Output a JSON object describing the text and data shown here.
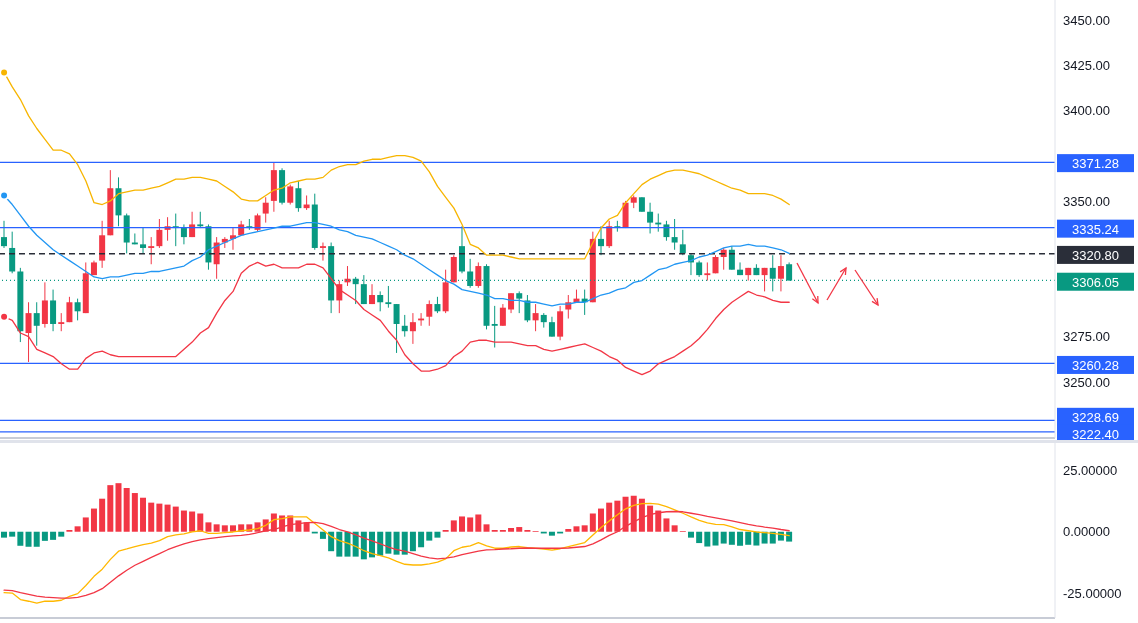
{
  "chart_data": [
    {
      "type": "candlestick",
      "tick_labels": "y",
      "categories": [
        null,
        null,
        null,
        null,
        null,
        null,
        null,
        null,
        null,
        null,
        null,
        null,
        null,
        null,
        null,
        null,
        null,
        null,
        null,
        null,
        null,
        null,
        null,
        null,
        null,
        null,
        null,
        null,
        null,
        null,
        null,
        null,
        null,
        null,
        null,
        null,
        null,
        null,
        null,
        null,
        null,
        null,
        null,
        null,
        null,
        null,
        null,
        null,
        null,
        null,
        null,
        null,
        null,
        null,
        null,
        null,
        null,
        null,
        null,
        null,
        null,
        null,
        null,
        null,
        null,
        null,
        null,
        null,
        null,
        null,
        null,
        null,
        null,
        null,
        null,
        null,
        null,
        null,
        null,
        null,
        null,
        null,
        null,
        null,
        null,
        null,
        null,
        null,
        null,
        null,
        null,
        null,
        null,
        null,
        null,
        null,
        null
      ],
      "ohlc": [
        [
          3330,
          3339,
          3324,
          3325
        ],
        [
          3324,
          3333,
          3310,
          3311
        ],
        [
          3311,
          3313,
          3272,
          3278
        ],
        [
          3277,
          3294,
          3261,
          3288
        ],
        [
          3288,
          3294,
          3270,
          3281
        ],
        [
          3282,
          3305,
          3280,
          3295
        ],
        [
          3295,
          3301,
          3278,
          3282
        ],
        [
          3282,
          3288,
          3278,
          3283
        ],
        [
          3283,
          3297,
          3283,
          3294
        ],
        [
          3294,
          3296,
          3284,
          3289
        ],
        [
          3288,
          3316,
          3288,
          3310
        ],
        [
          3309,
          3317,
          3309,
          3316
        ],
        [
          3317,
          3339,
          3313,
          3331
        ],
        [
          3331,
          3367,
          3331,
          3357
        ],
        [
          3357,
          3363,
          3336,
          3342
        ],
        [
          3342,
          3343,
          3321,
          3327
        ],
        [
          3327,
          3332,
          3326,
          3326
        ],
        [
          3326,
          3335,
          3321,
          3324
        ],
        [
          3324,
          3330,
          3315,
          3325
        ],
        [
          3325,
          3340,
          3324,
          3334
        ],
        [
          3334,
          3341,
          3328,
          3336
        ],
        [
          3336,
          3343,
          3325,
          3335
        ],
        [
          3335,
          3337,
          3326,
          3330
        ],
        [
          3330,
          3344,
          3330,
          3337
        ],
        [
          3337,
          3344,
          3335,
          3336
        ],
        [
          3336,
          3337,
          3312,
          3316
        ],
        [
          3315,
          3330,
          3307,
          3327
        ],
        [
          3327,
          3330,
          3324,
          3329
        ],
        [
          3329,
          3335,
          3323,
          3331
        ],
        [
          3331,
          3339,
          3331,
          3337
        ],
        [
          3336,
          3340,
          3334,
          3335
        ],
        [
          3334,
          3343,
          3333,
          3342
        ],
        [
          3343,
          3352,
          3338,
          3349
        ],
        [
          3350,
          3371,
          3344,
          3367
        ],
        [
          3367,
          3368,
          3348,
          3349
        ],
        [
          3349,
          3359,
          3348,
          3358
        ],
        [
          3357,
          3361,
          3344,
          3346
        ],
        [
          3346,
          3353,
          3345,
          3348
        ],
        [
          3348,
          3354,
          3323,
          3324
        ],
        [
          3324,
          3327,
          3317,
          3325
        ],
        [
          3325,
          3327,
          3288,
          3295
        ],
        [
          3295,
          3306,
          3288,
          3304
        ],
        [
          3305,
          3314,
          3303,
          3307
        ],
        [
          3307,
          3308,
          3293,
          3304
        ],
        [
          3304,
          3309,
          3293,
          3293
        ],
        [
          3293,
          3304,
          3293,
          3298
        ],
        [
          3298,
          3300,
          3289,
          3294
        ],
        [
          3294,
          3303,
          3291,
          3293
        ],
        [
          3293,
          3293,
          3266,
          3282
        ],
        [
          3281,
          3287,
          3275,
          3278
        ],
        [
          3278,
          3288,
          3271,
          3283
        ],
        [
          3284,
          3288,
          3281,
          3285
        ],
        [
          3286,
          3295,
          3281,
          3293
        ],
        [
          3293,
          3297,
          3288,
          3289
        ],
        [
          3289,
          3312,
          3288,
          3305
        ],
        [
          3305,
          3320,
          3305,
          3319
        ],
        [
          3325,
          3336,
          3310,
          3311
        ],
        [
          3311,
          3318,
          3302,
          3303
        ],
        [
          3303,
          3316,
          3302,
          3314
        ],
        [
          3314,
          3315,
          3279,
          3281
        ],
        [
          3282,
          3292,
          3269,
          3281
        ],
        [
          3281,
          3293,
          3281,
          3291
        ],
        [
          3290,
          3299,
          3288,
          3299
        ],
        [
          3299,
          3300,
          3288,
          3296
        ],
        [
          3295,
          3298,
          3283,
          3284
        ],
        [
          3284,
          3293,
          3278,
          3288
        ],
        [
          3287,
          3288,
          3280,
          3283
        ],
        [
          3283,
          3286,
          3275,
          3275
        ],
        [
          3275,
          3292,
          3273,
          3289
        ],
        [
          3290,
          3298,
          3285,
          3294
        ],
        [
          3294,
          3301,
          3294,
          3296
        ],
        [
          3296,
          3301,
          3287,
          3294
        ],
        [
          3294,
          3333,
          3294,
          3329
        ],
        [
          3329,
          3336,
          3320,
          3325
        ],
        [
          3325,
          3339,
          3324,
          3336
        ],
        [
          3336,
          3339,
          3333,
          3335
        ],
        [
          3335,
          3350,
          3335,
          3349
        ],
        [
          3349,
          3353,
          3346,
          3352
        ],
        [
          3352,
          3352,
          3344,
          3344
        ],
        [
          3344,
          3349,
          3332,
          3338
        ],
        [
          3338,
          3343,
          3333,
          3337
        ],
        [
          3337,
          3339,
          3328,
          3330
        ],
        [
          3330,
          3340,
          3323,
          3327
        ],
        [
          3326,
          3334,
          3320,
          3321
        ],
        [
          3320,
          3321,
          3309,
          3316
        ],
        [
          3316,
          3317,
          3308,
          3309
        ],
        [
          3309,
          3316,
          3306,
          3310
        ],
        [
          3310,
          3320,
          3310,
          3319
        ],
        [
          3319,
          3324,
          3312,
          3323
        ],
        [
          3323,
          3325,
          3312,
          3312
        ],
        [
          3312,
          3316,
          3309,
          3309
        ],
        [
          3309,
          3313,
          3306,
          3313
        ],
        [
          3313,
          3315,
          3309,
          3309
        ],
        [
          3309,
          3313,
          3300,
          3313
        ],
        [
          3313,
          3320,
          3300,
          3307
        ],
        [
          3307,
          3320,
          3300,
          3314
        ],
        [
          3315,
          3316,
          3306,
          3306
        ]
      ],
      "colors": [
        "#089981",
        "#089981",
        "#089981",
        "#f23645",
        "#089981",
        "#f23645",
        "#089981",
        "#f23645",
        "#f23645",
        "#089981",
        "#f23645",
        "#f23645",
        "#f23645",
        "#f23645",
        "#089981",
        "#089981",
        "#089981",
        "#089981",
        "#f23645",
        "#f23645",
        "#f23645",
        "#089981",
        "#089981",
        "#f23645",
        "#089981",
        "#089981",
        "#f23645",
        "#f23645",
        "#f23645",
        "#f23645",
        "#089981",
        "#f23645",
        "#f23645",
        "#f23645",
        "#089981",
        "#f23645",
        "#089981",
        "#f23645",
        "#089981",
        "#f23645",
        "#089981",
        "#f23645",
        "#f23645",
        "#089981",
        "#089981",
        "#f23645",
        "#089981",
        "#089981",
        "#089981",
        "#089981",
        "#f23645",
        "#f23645",
        "#f23645",
        "#089981",
        "#f23645",
        "#f23645",
        "#089981",
        "#089981",
        "#f23645",
        "#089981",
        "#089981",
        "#f23645",
        "#f23645",
        "#089981",
        "#089981",
        "#f23645",
        "#089981",
        "#089981",
        "#f23645",
        "#f23645",
        "#f23645",
        "#089981",
        "#f23645",
        "#089981",
        "#f23645",
        "#089981",
        "#f23645",
        "#f23645",
        "#089981",
        "#089981",
        "#089981",
        "#089981",
        "#089981",
        "#089981",
        "#089981",
        "#089981",
        "#f23645",
        "#f23645",
        "#f23645",
        "#089981",
        "#089981",
        "#f23645",
        "#089981",
        "#f23645",
        "#089981",
        "#f23645",
        "#089981"
      ],
      "series": [
        {
          "type": "line",
          "color": "#f7b500",
          "values": [
            3421,
            3413,
            3406,
            3397,
            3390,
            3384,
            3378,
            3378,
            3376,
            3370,
            3361,
            3349,
            3348,
            3350,
            3354,
            3355,
            3356,
            3356,
            3357,
            3358,
            3360,
            3362,
            3362,
            3363,
            3363,
            3362,
            3361,
            3358,
            3355,
            3351,
            3350,
            3350,
            3353,
            3356,
            3357,
            3360,
            3361,
            3362,
            3362,
            3363,
            3367,
            3369,
            3370,
            3370,
            3372,
            3373,
            3373,
            3374,
            3375,
            3375,
            3374,
            3372,
            3366,
            3358,
            3352,
            3346,
            3337,
            3326,
            3324,
            3320,
            3320,
            3320,
            3319,
            3318,
            3318,
            3318,
            3318,
            3318,
            3318,
            3318,
            3318,
            3318,
            3327,
            3335,
            3340,
            3342,
            3349,
            3354,
            3359,
            3362,
            3364,
            3366,
            3367,
            3367,
            3366,
            3365,
            3363,
            3361,
            3359,
            3357,
            3356,
            3354,
            3354,
            3354,
            3353,
            3351,
            3348
          ]
        },
        {
          "type": "line",
          "color": "#2196f3",
          "values": [
            3353,
            3348,
            3342,
            3336,
            3331,
            3327,
            3323,
            3320,
            3317,
            3314,
            3311,
            3308,
            3307,
            3308,
            3308,
            3309,
            3310,
            3310,
            3311,
            3311,
            3312,
            3313,
            3314,
            3317,
            3319,
            3323,
            3325,
            3327,
            3329,
            3331,
            3332,
            3333,
            3334,
            3335,
            3336,
            3336,
            3337,
            3338,
            3338,
            3337,
            3336,
            3334,
            3333,
            3331,
            3330,
            3329,
            3327,
            3325,
            3323,
            3320,
            3318,
            3315,
            3312,
            3309,
            3306,
            3304,
            3301,
            3300,
            3299,
            3298,
            3296,
            3296,
            3295,
            3295,
            3294,
            3294,
            3293,
            3292,
            3293,
            3293,
            3294,
            3294,
            3296,
            3298,
            3299,
            3301,
            3302,
            3305,
            3306,
            3309,
            3312,
            3313,
            3315,
            3316,
            3317,
            3319,
            3320,
            3322,
            3324,
            3325,
            3325,
            3326,
            3325,
            3325,
            3324,
            3323,
            3321
          ]
        },
        {
          "type": "line",
          "color": "#f23645",
          "values": [
            3286,
            3284,
            3277,
            3275,
            3268,
            3266,
            3264,
            3260,
            3257,
            3257,
            3263,
            3266,
            3267,
            3265,
            3264,
            3264,
            3264,
            3264,
            3264,
            3264,
            3264,
            3264,
            3268,
            3272,
            3277,
            3280,
            3288,
            3295,
            3300,
            3310,
            3314,
            3316,
            3314,
            3315,
            3313,
            3313,
            3313,
            3315,
            3315,
            3313,
            3307,
            3301,
            3298,
            3295,
            3290,
            3287,
            3284,
            3278,
            3273,
            3265,
            3260,
            3256,
            3256,
            3257,
            3259,
            3264,
            3267,
            3272,
            3273,
            3273,
            3272,
            3272,
            3272,
            3271,
            3270,
            3270,
            3268,
            3267,
            3268,
            3269,
            3270,
            3271,
            3269,
            3267,
            3264,
            3262,
            3258,
            3256,
            3254,
            3256,
            3260,
            3262,
            3264,
            3267,
            3270,
            3274,
            3279,
            3285,
            3290,
            3294,
            3297,
            3300,
            3298,
            3297,
            3295,
            3294,
            3294
          ]
        }
      ],
      "ylim": [
        3219,
        3461
      ],
      "yticks": [
        {
          "value": 3250,
          "label": "3250.00"
        },
        {
          "value": 3275,
          "label": "3275.00"
        },
        {
          "value": 3350,
          "label": "3350.00"
        },
        {
          "value": 3400,
          "label": "3400.00"
        },
        {
          "value": 3425,
          "label": "3425.00"
        },
        {
          "value": 3450,
          "label": "3450.00"
        }
      ],
      "ref_lines": [
        {
          "axis": "y",
          "value": 3371.28,
          "label": "3371.28",
          "color": "#2962ff"
        },
        {
          "axis": "y",
          "value": 3335.24,
          "label": "3335.24",
          "color": "#2962ff"
        },
        {
          "axis": "y",
          "value": 3320.8,
          "label": "3320.80",
          "color": "#2a2e39",
          "line_style": "dashed"
        },
        {
          "axis": "y",
          "value": 3306.05,
          "label": "3306.05",
          "color": "#089981",
          "line_style": "dotted"
        },
        {
          "axis": "y",
          "value": 3260.28,
          "label": "3260.28",
          "color": "#2962ff"
        },
        {
          "axis": "y",
          "value": 3228.69,
          "label": "3228.69",
          "color": "#2962ff"
        },
        {
          "axis": "y",
          "value": 3222.4,
          "label": "3222.40",
          "color": "#2962ff"
        }
      ]
    },
    {
      "type": "bar",
      "tick_labels": "y",
      "categories": [
        null,
        null,
        null,
        null,
        null,
        null,
        null,
        null,
        null,
        null,
        null,
        null,
        null,
        null,
        null,
        null,
        null,
        null,
        null,
        null,
        null,
        null,
        null,
        null,
        null,
        null,
        null,
        null,
        null,
        null,
        null,
        null,
        null,
        null,
        null,
        null,
        null,
        null,
        null,
        null,
        null,
        null,
        null,
        null,
        null,
        null,
        null,
        null,
        null,
        null,
        null,
        null,
        null,
        null,
        null,
        null,
        null,
        null,
        null,
        null,
        null,
        null,
        null,
        null,
        null,
        null,
        null,
        null,
        null,
        null,
        null,
        null,
        null,
        null,
        null,
        null,
        null,
        null,
        null,
        null,
        null,
        null,
        null,
        null,
        null,
        null,
        null,
        null,
        null,
        null,
        null,
        null,
        null,
        null,
        null,
        null,
        null
      ],
      "series": [
        {
          "type": "bar",
          "values": [
            -2.4,
            -2.0,
            -5.7,
            -6.1,
            -6.1,
            -3.7,
            -3.3,
            -2.0,
            0.7,
            2.2,
            5.8,
            9.4,
            13.4,
            18.9,
            19.7,
            17.7,
            15.7,
            13.8,
            11.8,
            11.4,
            11.0,
            10.2,
            8.6,
            8.2,
            7.4,
            3.8,
            3.0,
            2.6,
            2.6,
            3.0,
            3.0,
            3.8,
            5.0,
            7.4,
            6.6,
            6.6,
            4.6,
            3.8,
            -0.7,
            -2.9,
            -7.9,
            -10.1,
            -10.1,
            -10.1,
            -11.2,
            -10.4,
            -9.7,
            -8.9,
            -9.3,
            -9.3,
            -7.9,
            -6.3,
            -3.6,
            -2.4,
            0.7,
            4.6,
            6.2,
            5.8,
            7.0,
            3.0,
            0.7,
            0.7,
            1.5,
            1.9,
            0.7,
            0.3,
            -0.7,
            -1.6,
            -0.7,
            1.1,
            2.2,
            2.6,
            7.4,
            9.4,
            11.8,
            12.6,
            14.2,
            14.6,
            13.4,
            10.6,
            8.6,
            5.4,
            2.6,
            0.3,
            -2.4,
            -4.6,
            -6.0,
            -5.6,
            -4.8,
            -5.3,
            -5.7,
            -5.3,
            -5.6,
            -4.8,
            -4.8,
            -3.6,
            -4.0
          ],
          "colors": [
            "#089981",
            "#089981",
            "#089981",
            "#089981",
            "#089981",
            "#089981",
            "#089981",
            "#089981",
            "#f23645",
            "#f23645",
            "#f23645",
            "#f23645",
            "#f23645",
            "#f23645",
            "#f23645",
            "#f23645",
            "#f23645",
            "#f23645",
            "#f23645",
            "#f23645",
            "#f23645",
            "#f23645",
            "#f23645",
            "#f23645",
            "#f23645",
            "#f23645",
            "#f23645",
            "#f23645",
            "#f23645",
            "#f23645",
            "#f23645",
            "#f23645",
            "#f23645",
            "#f23645",
            "#f23645",
            "#f23645",
            "#f23645",
            "#f23645",
            "#089981",
            "#089981",
            "#089981",
            "#089981",
            "#089981",
            "#089981",
            "#089981",
            "#089981",
            "#089981",
            "#089981",
            "#089981",
            "#089981",
            "#089981",
            "#089981",
            "#089981",
            "#089981",
            "#f23645",
            "#f23645",
            "#f23645",
            "#f23645",
            "#f23645",
            "#f23645",
            "#f23645",
            "#f23645",
            "#f23645",
            "#f23645",
            "#f23645",
            "#f23645",
            "#089981",
            "#089981",
            "#089981",
            "#f23645",
            "#f23645",
            "#f23645",
            "#f23645",
            "#f23645",
            "#f23645",
            "#f23645",
            "#f23645",
            "#f23645",
            "#f23645",
            "#f23645",
            "#f23645",
            "#f23645",
            "#f23645",
            "#f23645",
            "#089981",
            "#089981",
            "#089981",
            "#089981",
            "#089981",
            "#089981",
            "#089981",
            "#089981",
            "#089981",
            "#089981",
            "#089981",
            "#089981",
            "#089981"
          ]
        },
        {
          "type": "line",
          "color": "#ffb800",
          "values": [
            -24.7,
            -24.9,
            -27.5,
            -28.2,
            -29.0,
            -28.2,
            -28.2,
            -27.8,
            -26.2,
            -25.1,
            -21.8,
            -18.1,
            -15.2,
            -11.2,
            -7.9,
            -7.0,
            -6.0,
            -5.2,
            -4.6,
            -3.6,
            -2.0,
            -1.3,
            -0.9,
            -0.1,
            0.4,
            -0.7,
            -0.7,
            -0.4,
            -0.1,
            0.4,
            0.7,
            1.3,
            2.6,
            4.9,
            5.3,
            6.0,
            6.0,
            6.0,
            3.3,
            0.7,
            -2.0,
            -3.6,
            -4.6,
            -6.0,
            -7.7,
            -8.9,
            -9.7,
            -10.6,
            -12.0,
            -13.2,
            -13.5,
            -13.5,
            -13.0,
            -12.3,
            -11.0,
            -7.7,
            -6.3,
            -5.7,
            -4.4,
            -5.7,
            -6.7,
            -6.7,
            -6.2,
            -6.0,
            -6.5,
            -6.7,
            -7.0,
            -7.5,
            -6.9,
            -6.0,
            -5.2,
            -4.4,
            -1.3,
            1.7,
            4.4,
            6.9,
            9.3,
            10.7,
            11.4,
            11.5,
            11.2,
            10.2,
            8.9,
            7.5,
            6.0,
            4.6,
            3.6,
            3.0,
            2.9,
            2.0,
            0.9,
            0.4,
            -0.1,
            -0.4,
            -0.7,
            -1.1,
            -1.6
          ]
        },
        {
          "type": "line",
          "color": "#f23645",
          "values": [
            -23.7,
            -23.9,
            -24.7,
            -25.4,
            -26.1,
            -26.5,
            -26.7,
            -26.9,
            -26.9,
            -26.6,
            -25.8,
            -24.7,
            -23.1,
            -20.5,
            -17.9,
            -15.6,
            -13.6,
            -12.0,
            -10.4,
            -8.9,
            -7.3,
            -6.0,
            -4.9,
            -4.0,
            -3.3,
            -2.8,
            -2.4,
            -2.0,
            -1.7,
            -1.5,
            -1.1,
            -0.4,
            0.4,
            0.9,
            2.0,
            2.9,
            3.3,
            3.7,
            3.8,
            3.3,
            2.2,
            0.9,
            -0.1,
            -1.3,
            -2.6,
            -3.7,
            -4.9,
            -6.2,
            -7.3,
            -7.9,
            -8.9,
            -9.9,
            -10.6,
            -11.0,
            -10.7,
            -10.2,
            -9.3,
            -8.6,
            -7.9,
            -7.4,
            -7.3,
            -7.0,
            -6.9,
            -6.7,
            -6.6,
            -6.7,
            -6.7,
            -6.7,
            -6.7,
            -6.6,
            -6.3,
            -6.0,
            -4.9,
            -3.3,
            -1.5,
            0.0,
            2.2,
            4.0,
            5.7,
            6.9,
            7.7,
            8.1,
            8.2,
            8.1,
            7.5,
            6.9,
            6.2,
            5.6,
            5.0,
            4.4,
            3.7,
            3.0,
            2.4,
            1.9,
            1.5,
            0.9,
            0.4
          ]
        }
      ],
      "ylim": [
        -35,
        36
      ],
      "yticks": [
        {
          "value": -25,
          "label": "-25.00000"
        },
        {
          "value": 0,
          "label": "0.00000"
        },
        {
          "value": 25,
          "label": "25.00000"
        }
      ]
    }
  ]
}
